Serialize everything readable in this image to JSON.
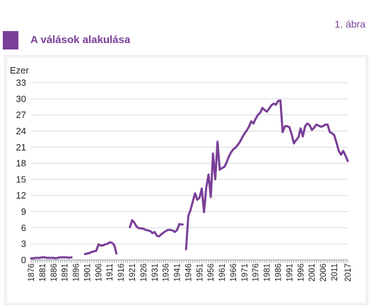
{
  "header": {
    "figure_label": "1. ábra",
    "title": "A válások alakulása"
  },
  "colors": {
    "accent": "#7a3f98",
    "line": "#7a3f98",
    "grid": "#d9d9d9"
  },
  "chart_data": {
    "type": "line",
    "title": "A válások alakulása",
    "ylabel": "Ezer",
    "xlabel": "",
    "ylim": [
      0,
      33
    ],
    "yticks": [
      0,
      3,
      6,
      9,
      12,
      15,
      18,
      21,
      24,
      27,
      30,
      33
    ],
    "xlim": [
      1876,
      2017
    ],
    "xticks": [
      1876,
      1881,
      1886,
      1891,
      1896,
      1901,
      1906,
      1911,
      1916,
      1921,
      1926,
      1931,
      1936,
      1941,
      1946,
      1951,
      1956,
      1961,
      1966,
      1971,
      1976,
      1981,
      1986,
      1991,
      1996,
      2001,
      2006,
      2011,
      2017
    ],
    "grid": true,
    "legend": "none",
    "series": [
      {
        "segments": [
          {
            "x": [
              1876,
              1877,
              1878,
              1879,
              1880,
              1881,
              1882,
              1883,
              1884,
              1885,
              1886,
              1887,
              1888,
              1889,
              1890,
              1891,
              1892,
              1893,
              1894
            ],
            "y": [
              0.3,
              0.3,
              0.4,
              0.4,
              0.4,
              0.5,
              0.5,
              0.4,
              0.4,
              0.4,
              0.4,
              0.3,
              0.4,
              0.5,
              0.5,
              0.5,
              0.5,
              0.4,
              0.5
            ]
          },
          {
            "x": [
              1900,
              1901,
              1902,
              1903,
              1904,
              1905,
              1906,
              1907,
              1908,
              1909,
              1910,
              1911,
              1912,
              1913,
              1914
            ],
            "y": [
              1.1,
              1.2,
              1.3,
              1.5,
              1.6,
              1.7,
              2.9,
              2.7,
              2.7,
              2.9,
              3.0,
              3.3,
              3.2,
              2.8,
              1.2
            ]
          },
          {
            "x": [
              1920,
              1921,
              1922,
              1923,
              1924,
              1925,
              1926,
              1927,
              1928,
              1929,
              1930,
              1931,
              1932,
              1933,
              1934,
              1935,
              1936,
              1937,
              1938,
              1939,
              1940,
              1941,
              1942
            ],
            "y": [
              6.1,
              7.4,
              6.9,
              6.2,
              5.9,
              5.9,
              5.8,
              5.6,
              5.5,
              5.4,
              5.0,
              5.2,
              4.5,
              4.4,
              4.8,
              5.1,
              5.4,
              5.6,
              5.6,
              5.5,
              5.2,
              5.6,
              6.7
            ]
          },
          {
            "x": [
              1943
            ],
            "y": [
              6.6
            ]
          },
          {
            "x": [
              1945,
              1946,
              1947,
              1948,
              1949,
              1950,
              1951,
              1952,
              1953,
              1954,
              1955,
              1956,
              1957,
              1958,
              1959,
              1960,
              1961,
              1962,
              1963,
              1964,
              1965,
              1966,
              1967,
              1968,
              1969,
              1970,
              1971,
              1972,
              1973,
              1974,
              1975,
              1976,
              1977,
              1978,
              1979,
              1980,
              1981,
              1982,
              1983,
              1984,
              1985,
              1986,
              1987,
              1988,
              1989,
              1990,
              1991,
              1992,
              1993,
              1994,
              1995,
              1996,
              1997,
              1998,
              1999,
              2000,
              2001,
              2002,
              2003,
              2004,
              2005,
              2006,
              2007,
              2008,
              2009,
              2010,
              2011,
              2012,
              2013,
              2014,
              2015,
              2016,
              2017
            ],
            "y": [
              2.0,
              8.2,
              9.3,
              10.9,
              12.4,
              11.2,
              11.6,
              13.3,
              8.9,
              13.5,
              15.9,
              11.7,
              19.8,
              15.0,
              22.0,
              16.8,
              17.1,
              17.3,
              18.1,
              19.2,
              20.0,
              20.6,
              20.9,
              21.4,
              22.0,
              22.8,
              23.5,
              24.1,
              24.8,
              25.8,
              25.4,
              26.3,
              27.0,
              27.4,
              28.3,
              27.9,
              27.6,
              28.2,
              28.8,
              29.1,
              28.9,
              29.6,
              29.7,
              23.8,
              24.9,
              24.9,
              24.7,
              23.4,
              21.7,
              22.3,
              22.8,
              24.5,
              23.0,
              24.9,
              25.4,
              25.1,
              24.2,
              24.6,
              25.2,
              25.0,
              24.8,
              24.9,
              25.2,
              25.2,
              23.8,
              23.6,
              23.2,
              21.8,
              20.3,
              19.6,
              20.3,
              19.4,
              18.4
            ]
          }
        ]
      }
    ]
  }
}
